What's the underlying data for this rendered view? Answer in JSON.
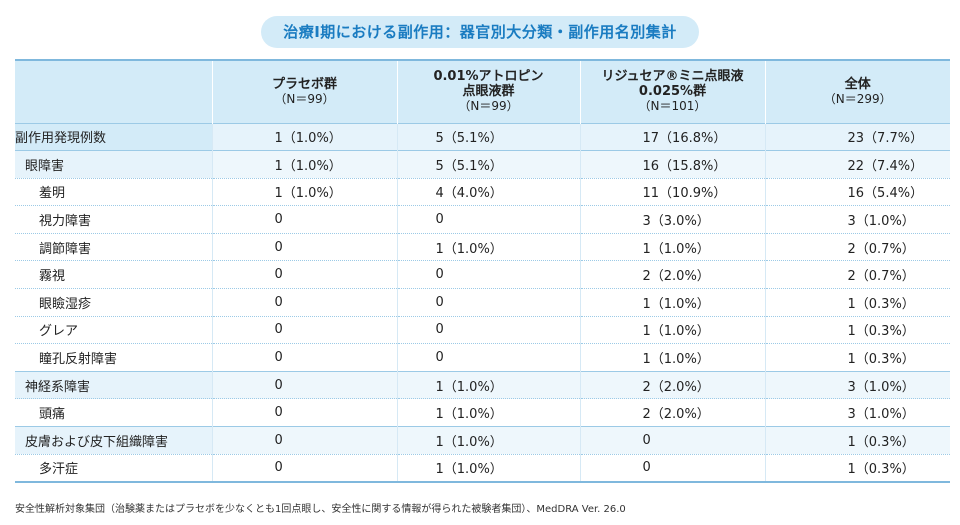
{
  "title": "治療Ⅰ期における副作用：器官別大分類・副作用名別集計",
  "header": {
    "columns": [
      {
        "name": "",
        "sub": ""
      },
      {
        "name": "プラセボ群",
        "sub": "（N＝99）"
      },
      {
        "name": "0.01%アトロピン",
        "name2": "点眼液群",
        "sub": "（N＝99）"
      },
      {
        "name": "リジュセア®ミニ点眼液",
        "name2": "0.025%群",
        "sub": "（N＝101）"
      },
      {
        "name": "全体",
        "sub": "（N＝299）"
      }
    ]
  },
  "rows": [
    {
      "label": "副作用発現例数",
      "kind": "total",
      "values": [
        "1（1.0%）",
        "5（5.1%）",
        "17（16.8%）",
        "23（7.7%）"
      ]
    },
    {
      "label": "眼障害",
      "kind": "soc",
      "values": [
        "1（1.0%）",
        "5（5.1%）",
        "16（15.8%）",
        "22（7.4%）"
      ]
    },
    {
      "label": "羞明",
      "kind": "sub",
      "values": [
        "1（1.0%）",
        "4（4.0%）",
        "11（10.9%）",
        "16（5.4%）"
      ]
    },
    {
      "label": "視力障害",
      "kind": "sub",
      "values": [
        "0",
        "0",
        "3（3.0%）",
        "3（1.0%）"
      ]
    },
    {
      "label": "調節障害",
      "kind": "sub",
      "values": [
        "0",
        "1（1.0%）",
        "1（1.0%）",
        "2（0.7%）"
      ]
    },
    {
      "label": "霧視",
      "kind": "sub",
      "values": [
        "0",
        "0",
        "2（2.0%）",
        "2（0.7%）"
      ]
    },
    {
      "label": "眼瞼湿疹",
      "kind": "sub",
      "values": [
        "0",
        "0",
        "1（1.0%）",
        "1（0.3%）"
      ]
    },
    {
      "label": "グレア",
      "kind": "sub",
      "values": [
        "0",
        "0",
        "1（1.0%）",
        "1（0.3%）"
      ]
    },
    {
      "label": "瞳孔反射障害",
      "kind": "sub",
      "values": [
        "0",
        "0",
        "1（1.0%）",
        "1（0.3%）"
      ]
    },
    {
      "label": "神経系障害",
      "kind": "soc",
      "values": [
        "0",
        "1（1.0%）",
        "2（2.0%）",
        "3（1.0%）"
      ]
    },
    {
      "label": "頭痛",
      "kind": "sub",
      "values": [
        "0",
        "1（1.0%）",
        "2（2.0%）",
        "3（1.0%）"
      ]
    },
    {
      "label": "皮膚および皮下組織障害",
      "kind": "soc",
      "values": [
        "0",
        "1（1.0%）",
        "0",
        "1（0.3%）"
      ]
    },
    {
      "label": "多汗症",
      "kind": "sub",
      "values": [
        "0",
        "1（1.0%）",
        "0",
        "1（0.3%）"
      ]
    }
  ],
  "footnote": "安全性解析対象集団（治験薬またはプラセボを少なくとも1回点眼し、安全性に関する情報が得られた被験者集団）、MedDRA Ver. 26.0",
  "colors": {
    "accent": "#1a7cc1",
    "header_bg": "#d3ebf8",
    "row_shade": "#e6f3fb",
    "rule": "#9ccae6"
  }
}
